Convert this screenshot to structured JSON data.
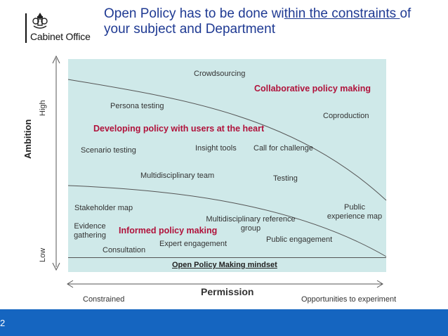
{
  "logo": {
    "name": "Cabinet Office",
    "icon": "royal-crest-icon"
  },
  "title": {
    "part1": "Open Policy has to be done wi",
    "part2": "thin the constraints ",
    "part3": "of",
    "line2": "your subject and Department"
  },
  "axes": {
    "y_title": "Ambition",
    "y_high": "High",
    "y_low": "Low",
    "x_title": "Permission",
    "x_left": "Constrained",
    "x_right": "Opportunities to experiment"
  },
  "zones": {
    "top": "Collaborative policy making",
    "middle": "Developing policy with users at the heart",
    "bottom": "Informed policy making"
  },
  "items": {
    "crowdsourcing": "Crowdsourcing",
    "persona_testing": "Persona testing",
    "coproduction": "Coproduction",
    "scenario_testing": "Scenario testing",
    "insight_tools": "Insight tools",
    "call_for_challenge": "Call for challenge",
    "multidisciplinary_team": "Multidisciplinary team",
    "testing": "Testing",
    "stakeholder_map": "Stakeholder map",
    "public_experience_map_1": "Public",
    "public_experience_map_2": "experience map",
    "multi_ref_group_1": "Multidisciplinary reference",
    "multi_ref_group_2": "group",
    "evidence_gathering_1": "Evidence",
    "evidence_gathering_2": "gathering",
    "public_engagement": "Public engagement",
    "expert_engagement": "Expert engagement",
    "consultation": "Consultation"
  },
  "mindset": "Open Policy Making mindset",
  "page_number": "2",
  "colors": {
    "title_blue": "#1f3a93",
    "panel_teal": "#cfe9e9",
    "zone_red": "#b0123b",
    "footer_blue": "#1565c0"
  }
}
